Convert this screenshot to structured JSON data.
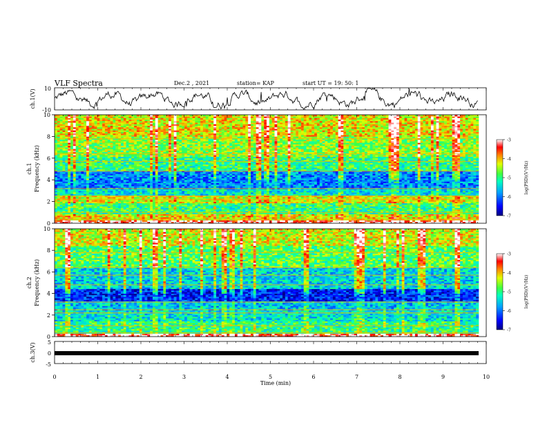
{
  "header": {
    "title": "VLF Spectra",
    "date": "Dec.2  , 2021",
    "station": "station= KAP",
    "start": "start  UT =   19: 50: 1"
  },
  "chart_data": [
    {
      "type": "line",
      "ylabel": "ch.1(V)",
      "ylim": [
        -10,
        10
      ],
      "yticks": [
        "10",
        "-10"
      ],
      "xlim": [
        0,
        10
      ],
      "series": [
        {
          "values_summary": "noisy waveform oscillating roughly between -6 and +6 V from 0 to 9.8 min",
          "color": "#000000"
        }
      ]
    },
    {
      "type": "heatmap",
      "ylabel_top": "ch.1",
      "ylabel": "Frequency (kHz)",
      "ylim": [
        0,
        10
      ],
      "yticks": [
        "0",
        "2",
        "4",
        "6",
        "8",
        "10"
      ],
      "xlim": [
        0,
        9.8
      ],
      "colorbar": {
        "label": "log(PSD)(V²/Hz)",
        "ticks": [
          "-3",
          "-4",
          "-5",
          "-6",
          "-7"
        ],
        "range": [
          -7,
          -3
        ]
      },
      "bands": [
        {
          "f": [
            0,
            0.3
          ],
          "level": -3.2
        },
        {
          "f": [
            0.3,
            0.9
          ],
          "level": -4.2
        },
        {
          "f": [
            0.9,
            1.9
          ],
          "level": -5.0
        },
        {
          "f": [
            1.9,
            2.6
          ],
          "level": -4.3
        },
        {
          "f": [
            2.6,
            3.1
          ],
          "level": -5.4
        },
        {
          "f": [
            3.1,
            4.8
          ],
          "level": -5.9
        },
        {
          "f": [
            4.8,
            6.2
          ],
          "level": -5.0
        },
        {
          "f": [
            6.2,
            8.0
          ],
          "level": -4.6
        },
        {
          "f": [
            8.0,
            10.0
          ],
          "level": -4.2
        }
      ]
    },
    {
      "type": "heatmap",
      "ylabel_top": "ch.2",
      "ylabel": "Frequency (kHz)",
      "ylim": [
        0,
        10
      ],
      "yticks": [
        "0",
        "2",
        "4",
        "6",
        "8",
        "10"
      ],
      "xlim": [
        0,
        9.8
      ],
      "colorbar": {
        "label": "log(PSD)(V²/Hz)",
        "ticks": [
          "-3",
          "-4",
          "-5",
          "-6",
          "-7"
        ],
        "range": [
          -7,
          -3
        ]
      },
      "bands": [
        {
          "f": [
            0,
            0.3
          ],
          "level": -3.2
        },
        {
          "f": [
            0.3,
            1.5
          ],
          "level": -5.0
        },
        {
          "f": [
            1.5,
            2.4
          ],
          "level": -5.4
        },
        {
          "f": [
            2.4,
            3.3
          ],
          "level": -5.6
        },
        {
          "f": [
            3.3,
            4.5
          ],
          "level": -6.4
        },
        {
          "f": [
            4.5,
            6.5
          ],
          "level": -5.5
        },
        {
          "f": [
            6.5,
            8.5
          ],
          "level": -4.8
        },
        {
          "f": [
            8.5,
            10.0
          ],
          "level": -4.3
        }
      ]
    },
    {
      "type": "line",
      "ylabel": "ch.3(V)",
      "ylim": [
        -5,
        5
      ],
      "yticks": [
        "5",
        "0",
        "-5"
      ],
      "xlim": [
        0,
        10
      ],
      "series": [
        {
          "values_summary": "thick flat band near 0 V from 0 to 9.8 min",
          "color": "#000000"
        }
      ]
    }
  ],
  "xaxis": {
    "label": "Time  (min)",
    "ticks": [
      "0",
      "1",
      "2",
      "3",
      "4",
      "5",
      "6",
      "7",
      "8",
      "9",
      "10"
    ],
    "range": [
      0,
      10
    ]
  }
}
